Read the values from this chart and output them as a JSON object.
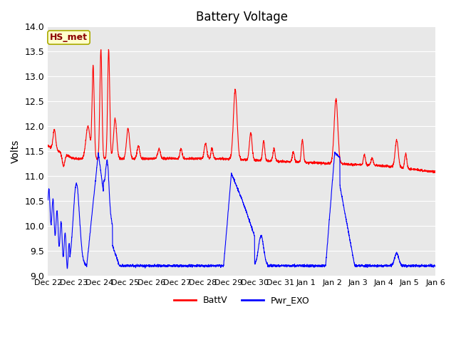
{
  "title": "Battery Voltage",
  "ylabel": "Volts",
  "ylim": [
    9.0,
    14.0
  ],
  "yticks": [
    9.0,
    9.5,
    10.0,
    10.5,
    11.0,
    11.5,
    12.0,
    12.5,
    13.0,
    13.5,
    14.0
  ],
  "xtick_labels": [
    "Dec 22",
    "Dec 23",
    "Dec 24",
    "Dec 25",
    "Dec 26",
    "Dec 27",
    "Dec 28",
    "Dec 29",
    "Dec 30",
    "Dec 31",
    "Jan 1",
    "Jan 2",
    "Jan 3",
    "Jan 4",
    "Jan 5",
    "Jan 6"
  ],
  "annotation_text": "HS_met",
  "annotation_color": "#8b0000",
  "annotation_bg": "#ffffcc",
  "annotation_border": "#aaaa00",
  "fig_bg_color": "#ffffff",
  "plot_bg_color": "#e8e8e8",
  "grid_color": "#ffffff",
  "red_line_color": "#ff0000",
  "blue_line_color": "#0000ff",
  "legend_entries": [
    "BattV",
    "Pwr_EXO"
  ],
  "title_fontsize": 12,
  "label_fontsize": 10,
  "tick_fontsize": 9
}
